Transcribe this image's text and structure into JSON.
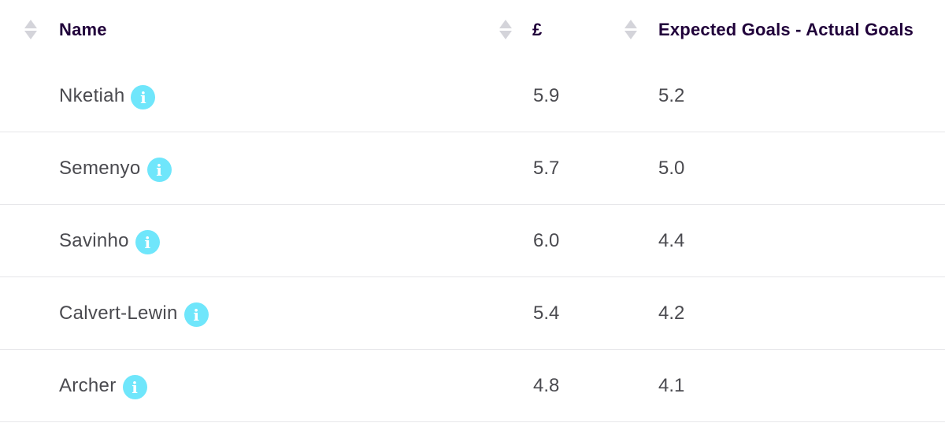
{
  "table": {
    "headers": {
      "name": "Name",
      "price": "£",
      "xg_diff": "Expected Goals - Actual Goals"
    },
    "rows": [
      {
        "name": "Nketiah",
        "price": "5.9",
        "xg_diff": "5.2"
      },
      {
        "name": "Semenyo",
        "price": "5.7",
        "xg_diff": "5.0"
      },
      {
        "name": "Savinho",
        "price": "6.0",
        "xg_diff": "4.4"
      },
      {
        "name": "Calvert-Lewin",
        "price": "5.4",
        "xg_diff": "4.2"
      },
      {
        "name": "Archer",
        "price": "4.8",
        "xg_diff": "4.1"
      }
    ]
  },
  "icons": {
    "sort": "sort-arrows-icon",
    "info": "info-icon"
  },
  "colors": {
    "info_badge": "#6fe6fb",
    "header_text": "#20003a",
    "cell_text": "#4a4a4f",
    "divider": "#e6e6e9",
    "sort_arrow": "#d4d4da"
  },
  "info_glyph": "i"
}
